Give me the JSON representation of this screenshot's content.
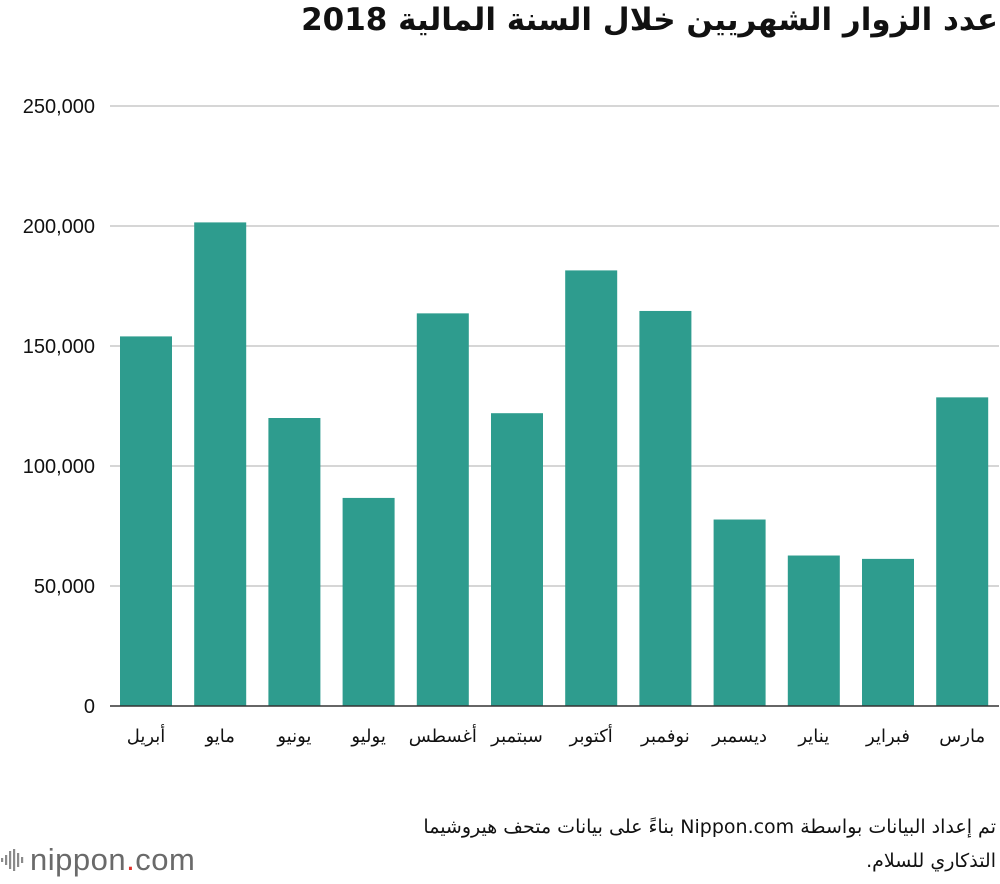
{
  "chart_data": {
    "type": "bar",
    "title": "عدد الزوار الشهريين خلال السنة المالية 2018",
    "categories": [
      "أبريل",
      "مايو",
      "يونيو",
      "يوليو",
      "أغسطس",
      "سبتمبر",
      "أكتوبر",
      "نوفمبر",
      "ديسمبر",
      "يناير",
      "فبراير",
      "مارس"
    ],
    "values": [
      154000,
      201500,
      120000,
      86700,
      163600,
      122000,
      181500,
      164600,
      77700,
      62700,
      61300,
      128600
    ],
    "ylim": [
      0,
      250000
    ],
    "yticks": [
      0,
      50000,
      100000,
      150000,
      200000,
      250000
    ],
    "ytick_labels": [
      "0",
      "50,000",
      "100,000",
      "150,000",
      "200,000",
      "250,000"
    ],
    "xlabel": "",
    "ylabel": "",
    "grid": true,
    "bar_color": "#2e9c8e"
  },
  "source": {
    "line1": "تم إعداد البيانات بواسطة  Nippon.com  بناءً على بيانات متحف هيروشيما",
    "line2": "التذكاري للسلام."
  },
  "logo": {
    "name": "nippon",
    "dot": ".",
    "suffix": "com"
  }
}
